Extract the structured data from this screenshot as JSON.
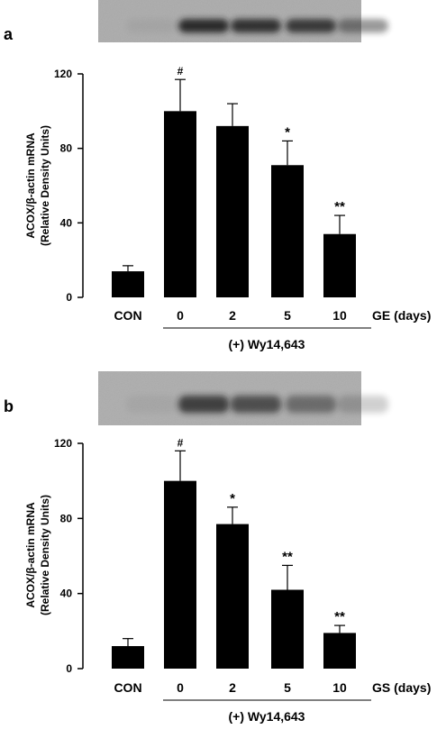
{
  "chart_data": [
    {
      "type": "bar",
      "panel_label": "a",
      "ylabel_line1": "ACOX/β-actin mRNA",
      "ylabel_line2": "(Relative Density Units)",
      "ylim": [
        0,
        120
      ],
      "yticks": [
        "0",
        "40",
        "80",
        "120"
      ],
      "ytick_values": [
        0,
        40,
        80,
        120
      ],
      "categories": [
        "CON",
        "0",
        "2",
        "5",
        "10"
      ],
      "values": [
        14,
        100,
        92,
        71,
        34
      ],
      "errors": [
        3,
        17,
        12,
        13,
        10
      ],
      "annotations": [
        "",
        "#",
        "",
        "*",
        "**"
      ],
      "xlabel": "GE (days)",
      "group_label": "(+) Wy14,643",
      "bar_color": "#000000",
      "blot": {
        "band_intensity": [
          0.05,
          0.9,
          0.85,
          0.8,
          0.45
        ]
      }
    },
    {
      "type": "bar",
      "panel_label": "b",
      "ylabel_line1": "ACOX/β-actin mRNA",
      "ylabel_line2": "(Relative Density Units)",
      "ylim": [
        0,
        120
      ],
      "yticks": [
        "0",
        "40",
        "80",
        "120"
      ],
      "ytick_values": [
        0,
        40,
        80,
        120
      ],
      "categories": [
        "CON",
        "0",
        "2",
        "5",
        "10"
      ],
      "values": [
        12,
        100,
        77,
        42,
        19
      ],
      "errors": [
        4,
        16,
        9,
        13,
        4
      ],
      "annotations": [
        "",
        "#",
        "*",
        "**",
        "**"
      ],
      "xlabel": "GS (days)",
      "group_label": "(+) Wy14,643",
      "bar_color": "#000000",
      "blot": {
        "band_intensity": [
          0.05,
          0.75,
          0.65,
          0.45,
          0.2
        ]
      }
    }
  ]
}
